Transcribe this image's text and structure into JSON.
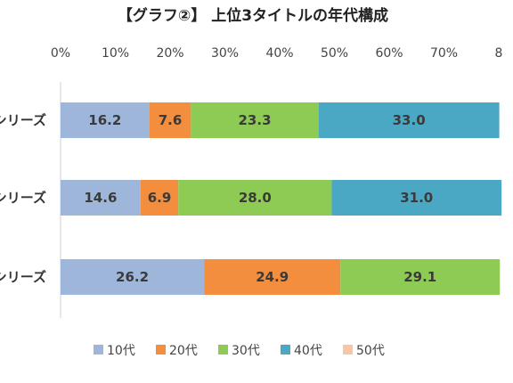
{
  "chart_data": {
    "type": "bar",
    "orientation": "horizontal",
    "stacked": true,
    "title": "【グラフ②】 上位3タイトルの年代構成",
    "categories": [
      "シリーズ",
      "シリーズ",
      "シリーズ"
    ],
    "x_ticks": [
      "0%",
      "10%",
      "20%",
      "30%",
      "40%",
      "50%",
      "60%",
      "70%",
      "8"
    ],
    "xlim": [
      0,
      100
    ],
    "grid": false,
    "legend_position": "bottom",
    "series": [
      {
        "name": "10代",
        "color": "#9DB6DA",
        "values": [
          16.2,
          14.6,
          26.2
        ]
      },
      {
        "name": "20代",
        "color": "#F28E3E",
        "values": [
          7.6,
          6.9,
          24.9
        ]
      },
      {
        "name": "30代",
        "color": "#8DCB54",
        "values": [
          23.3,
          28.0,
          29.1
        ]
      },
      {
        "name": "40代",
        "color": "#4BA8C4",
        "values": [
          33.0,
          31.0,
          null
        ]
      },
      {
        "name": "50代",
        "color": "#F8C6A4",
        "values": [
          null,
          null,
          null
        ]
      }
    ]
  }
}
